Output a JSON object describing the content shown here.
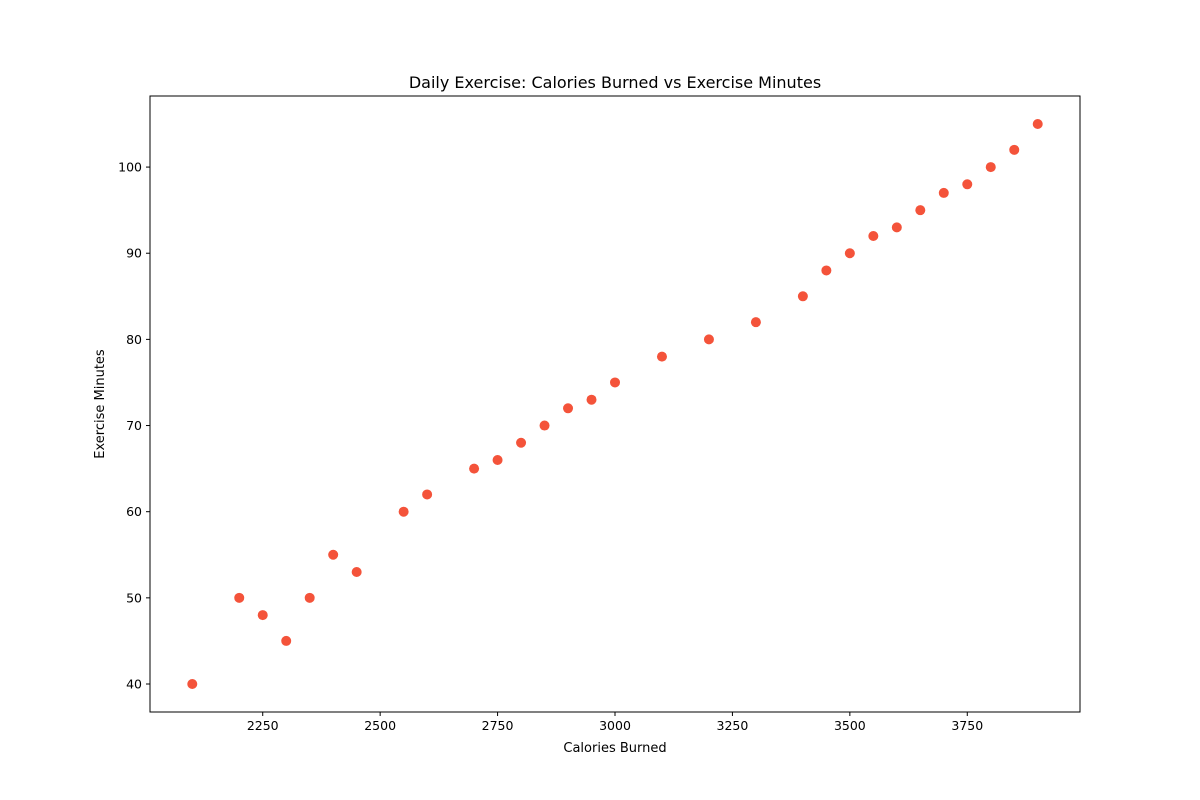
{
  "chart_data": {
    "type": "scatter",
    "title": "Daily Exercise: Calories Burned vs Exercise Minutes",
    "xlabel": "Calories Burned",
    "ylabel": "Exercise Minutes",
    "xlim": [
      2010,
      3990
    ],
    "ylim": [
      36.75,
      108.25
    ],
    "xticks": [
      2250,
      2500,
      2750,
      3000,
      3250,
      3500,
      3750
    ],
    "yticks": [
      40,
      50,
      60,
      70,
      80,
      90,
      100
    ],
    "grid": false,
    "marker_color": "#f4533a",
    "points": [
      {
        "x": 2100,
        "y": 40
      },
      {
        "x": 2200,
        "y": 50
      },
      {
        "x": 2250,
        "y": 48
      },
      {
        "x": 2300,
        "y": 45
      },
      {
        "x": 2350,
        "y": 50
      },
      {
        "x": 2400,
        "y": 55
      },
      {
        "x": 2450,
        "y": 53
      },
      {
        "x": 2550,
        "y": 60
      },
      {
        "x": 2600,
        "y": 62
      },
      {
        "x": 2700,
        "y": 65
      },
      {
        "x": 2750,
        "y": 66
      },
      {
        "x": 2800,
        "y": 68
      },
      {
        "x": 2850,
        "y": 70
      },
      {
        "x": 2900,
        "y": 72
      },
      {
        "x": 2950,
        "y": 73
      },
      {
        "x": 3000,
        "y": 75
      },
      {
        "x": 3100,
        "y": 78
      },
      {
        "x": 3200,
        "y": 80
      },
      {
        "x": 3300,
        "y": 82
      },
      {
        "x": 3400,
        "y": 85
      },
      {
        "x": 3450,
        "y": 88
      },
      {
        "x": 3500,
        "y": 90
      },
      {
        "x": 3550,
        "y": 92
      },
      {
        "x": 3600,
        "y": 93
      },
      {
        "x": 3650,
        "y": 95
      },
      {
        "x": 3700,
        "y": 97
      },
      {
        "x": 3750,
        "y": 98
      },
      {
        "x": 3800,
        "y": 100
      },
      {
        "x": 3850,
        "y": 102
      },
      {
        "x": 3900,
        "y": 105
      }
    ]
  }
}
